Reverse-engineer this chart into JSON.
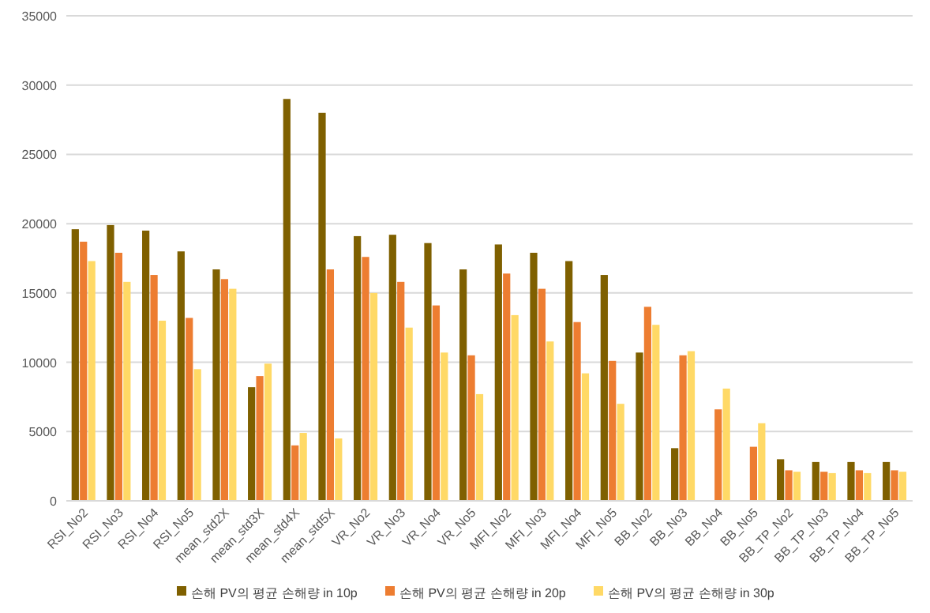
{
  "chart_data": {
    "type": "bar",
    "categories": [
      "RSI_No2",
      "RSI_No3",
      "RSI_No4",
      "RSI_No5",
      "mean_std2X",
      "mean_std3X",
      "mean_std4X",
      "mean_std5X",
      "VR_No2",
      "VR_No3",
      "VR_No4",
      "VR_No5",
      "MFI_No2",
      "MFI_No3",
      "MFI_No4",
      "MFI_No5",
      "BB_No2",
      "BB_No3",
      "BB_No4",
      "BB_No5",
      "BB_TP_No2",
      "BB_TP_No3",
      "BB_TP_No4",
      "BB_TP_No5"
    ],
    "series": [
      {
        "name": "손해 PV의 평균 손해량 in 10p",
        "color": "#7f6000",
        "values": [
          19600,
          19900,
          19500,
          18000,
          16700,
          8200,
          29000,
          28000,
          19100,
          19200,
          18600,
          16700,
          18500,
          17900,
          17300,
          16300,
          10700,
          3800,
          null,
          null,
          3000,
          2800,
          2800,
          2800
        ]
      },
      {
        "name": "손해 PV의 평균 손해량 in 20p",
        "color": "#ed7d31",
        "values": [
          18700,
          17900,
          16300,
          13200,
          16000,
          9000,
          4000,
          16700,
          17600,
          15800,
          14100,
          10500,
          16400,
          15300,
          12900,
          10100,
          14000,
          10500,
          6600,
          3900,
          2200,
          2100,
          2200,
          2200
        ]
      },
      {
        "name": "손해 PV의 평균 손해량 in 30p",
        "color": "#ffd966",
        "values": [
          17300,
          15800,
          13000,
          9500,
          15300,
          9900,
          4900,
          4500,
          15000,
          12500,
          10700,
          7700,
          13400,
          11500,
          9200,
          7000,
          12700,
          10800,
          8100,
          5600,
          2100,
          2000,
          2000,
          2100
        ]
      }
    ],
    "ylim": [
      0,
      35000
    ],
    "yticks": [
      0,
      5000,
      10000,
      15000,
      20000,
      25000,
      30000,
      35000
    ],
    "grid": "y",
    "legend": "bottom"
  }
}
